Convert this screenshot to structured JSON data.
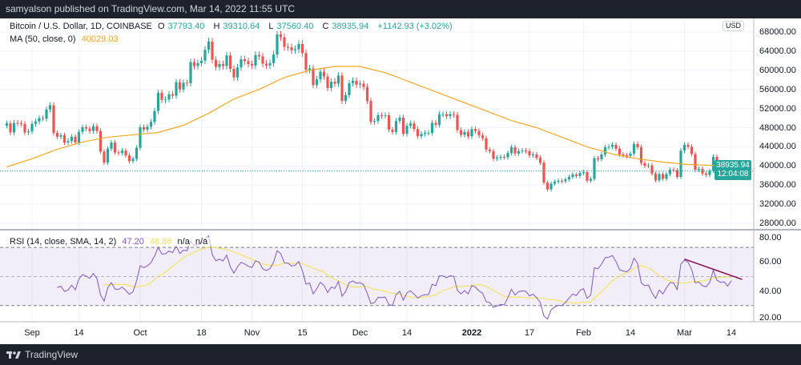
{
  "topbar": {
    "text": "samyalson published on TradingView.com, Mar 14, 2022 11:55 UTC"
  },
  "legend": {
    "symbol": "Bitcoin / U.S. Dollar, 1D, COINBASE",
    "o_label": "O",
    "o": "37793.40",
    "h_label": "H",
    "h": "39310.64",
    "l_label": "L",
    "l": "37560.40",
    "c_label": "C",
    "c": "38935.94",
    "change": "+1142.93 (+3.02%)"
  },
  "ma": {
    "label": "MA (50, close, 0)",
    "value": "40029.03",
    "color": "#f5a623",
    "points": [
      [
        "2021-08-25",
        39800
      ],
      [
        "2021-09-01",
        41500
      ],
      [
        "2021-09-08",
        43500
      ],
      [
        "2021-09-15",
        45000
      ],
      [
        "2021-09-22",
        46000
      ],
      [
        "2021-09-29",
        46500
      ],
      [
        "2021-10-06",
        47000
      ],
      [
        "2021-10-13",
        48500
      ],
      [
        "2021-10-20",
        51000
      ],
      [
        "2021-10-27",
        54000
      ],
      [
        "2021-11-03",
        56000
      ],
      [
        "2021-11-10",
        58500
      ],
      [
        "2021-11-17",
        60000
      ],
      [
        "2021-11-24",
        60800
      ],
      [
        "2021-12-01",
        60800
      ],
      [
        "2021-12-08",
        59500
      ],
      [
        "2021-12-15",
        57500
      ],
      [
        "2021-12-22",
        55500
      ],
      [
        "2021-12-29",
        53500
      ],
      [
        "2022-01-05",
        51500
      ],
      [
        "2022-01-12",
        49500
      ],
      [
        "2022-01-19",
        48000
      ],
      [
        "2022-01-26",
        46000
      ],
      [
        "2022-02-02",
        44000
      ],
      [
        "2022-02-09",
        42500
      ],
      [
        "2022-02-16",
        41500
      ],
      [
        "2022-02-23",
        40800
      ],
      [
        "2022-03-02",
        40300
      ],
      [
        "2022-03-09",
        40100
      ],
      [
        "2022-03-14",
        40029
      ]
    ]
  },
  "rsi": {
    "label": "RSI (14, close, SMA, 14, 2)",
    "value": "47.20",
    "sma_value": "48.86",
    "na1": "n/a",
    "na2": "n/a",
    "color": "#7e57c2",
    "sma_color": "#f3e14a",
    "levels": [
      70,
      50,
      30
    ],
    "ticks": [
      "80.00",
      "60.00",
      "40.00",
      "20.00"
    ],
    "trendline": {
      "from": [
        "2022-03-01",
        62
      ],
      "to": [
        "2022-03-17",
        48
      ],
      "color": "#880e4f"
    }
  },
  "price_axis": {
    "currency": "USD",
    "ticks": [
      "68000.00",
      "64000.00",
      "60000.00",
      "56000.00",
      "52000.00",
      "48000.00",
      "44000.00",
      "40000.00",
      "36000.00",
      "32000.00",
      "28000.00"
    ],
    "last_price": "38935.94",
    "countdown": "12:04:08",
    "up_color": "#26a69a",
    "down_color": "#ef5350"
  },
  "time_axis": [
    [
      "Sep",
      "2021-09-01"
    ],
    [
      "14",
      "2021-09-14"
    ],
    [
      "Oct",
      "2021-10-01"
    ],
    [
      "18",
      "2021-10-18"
    ],
    [
      "Nov",
      "2021-11-01"
    ],
    [
      "15",
      "2021-11-15"
    ],
    [
      "Dec",
      "2021-12-01"
    ],
    [
      "14",
      "2021-12-14"
    ],
    [
      "2022",
      "2022-01-01"
    ],
    [
      "17",
      "2022-01-17"
    ],
    [
      "Feb",
      "2022-02-01"
    ],
    [
      "14",
      "2022-02-14"
    ],
    [
      "Mar",
      "2022-03-01"
    ],
    [
      "14",
      "2022-03-14"
    ]
  ],
  "chart_data": {
    "type": "candlestick",
    "start_date": "2021-08-25",
    "interval": "1D",
    "last_open": 37793.4,
    "closes": [
      48900,
      47000,
      49000,
      48900,
      48800,
      47000,
      47200,
      48800,
      49300,
      50000,
      49900,
      51800,
      52700,
      46900,
      46100,
      46400,
      44900,
      45200,
      46100,
      44900,
      47100,
      48100,
      47800,
      47300,
      48300,
      47300,
      43000,
      40700,
      43600,
      44900,
      42800,
      42700,
      43200,
      42200,
      41000,
      41500,
      43800,
      48100,
      47600,
      48200,
      49200,
      51500,
      55300,
      53800,
      53900,
      55000,
      54700,
      57500,
      56000,
      57400,
      57300,
      61700,
      60900,
      61500,
      62000,
      64300,
      66000,
      62200,
      60700,
      61300,
      60900,
      63100,
      60300,
      58500,
      60600,
      62300,
      61900,
      61300,
      61000,
      63200,
      62900,
      61400,
      61000,
      61500,
      63300,
      67500,
      66900,
      64900,
      64800,
      64200,
      64400,
      65500,
      63600,
      60100,
      60400,
      56900,
      58100,
      59700,
      58700,
      56300,
      57600,
      57200,
      58900,
      53600,
      54800,
      57300,
      57800,
      57000,
      57200,
      56500,
      53600,
      49200,
      49400,
      50600,
      50500,
      50600,
      47600,
      47100,
      49400,
      50100,
      46700,
      48400,
      48900,
      47700,
      46200,
      46700,
      46900,
      46900,
      49000,
      48600,
      50800,
      50800,
      50400,
      50800,
      50700,
      47500,
      46500,
      47100,
      46200,
      47700,
      47300,
      46400,
      45800,
      43400,
      43100,
      41500,
      41700,
      41900,
      41800,
      42700,
      43900,
      42600,
      43100,
      43200,
      43100,
      42200,
      42400,
      41700,
      40700,
      36500,
      35100,
      36300,
      36700,
      36900,
      36800,
      37200,
      37700,
      38200,
      37900,
      38500,
      38700,
      36900,
      37300,
      41600,
      41400,
      42400,
      43900,
      44000,
      44400,
      43600,
      42400,
      42200,
      42100,
      42600,
      44600,
      43900,
      40600,
      40000,
      40100,
      38400,
      37000,
      38300,
      37300,
      38300,
      39200,
      39100,
      37700,
      43200,
      44400,
      44000,
      42500,
      39200,
      39400,
      38400,
      38100,
      39000,
      41900,
      39400,
      38800,
      38900,
      37800,
      38935.94
    ]
  },
  "footer": {
    "brand": "TradingView"
  }
}
